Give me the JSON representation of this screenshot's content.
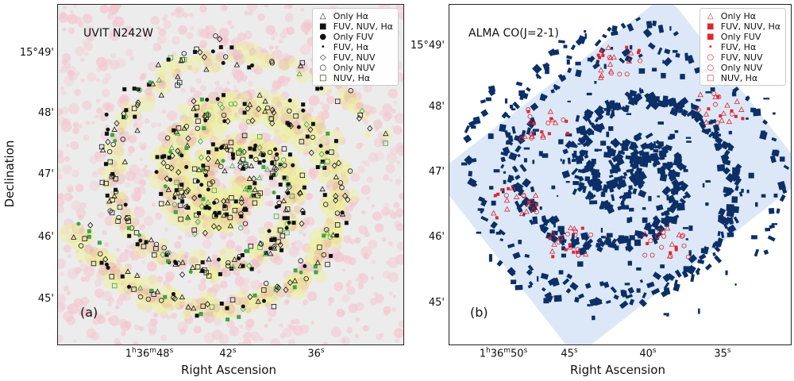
{
  "figure": {
    "panel_a": {
      "title": "UVIT N242W",
      "tag": "(a)",
      "ylabel": "Declination",
      "xlabel": "Right Ascension",
      "yticks": [
        "15°49'",
        "48'",
        "47'",
        "46'",
        "45'"
      ],
      "xticks": [
        "1h36m48s",
        "42s",
        "36s"
      ],
      "legend": [
        {
          "label": "Only Hα",
          "symbol": "△"
        },
        {
          "label": "FUV, NUV, Hα",
          "symbol": "■"
        },
        {
          "label": "Only FUV",
          "symbol": "●"
        },
        {
          "label": "FUV, Hα",
          "symbol": "•"
        },
        {
          "label": "FUV, NUV",
          "symbol": "◇"
        },
        {
          "label": "Only NUV",
          "symbol": "○"
        },
        {
          "label": "NUV, Hα",
          "symbol": "□"
        }
      ]
    },
    "panel_b": {
      "title": "ALMA CO(J=2-1)",
      "tag": "(b)",
      "xlabel": "Right Ascension",
      "yticks": [
        "15°49'",
        "48'",
        "47'",
        "46'",
        "45'"
      ],
      "xticks": [
        "1h36m50s",
        "45s",
        "40s",
        "35s"
      ],
      "legend": [
        {
          "label": "Only Hα",
          "symbol": "△"
        },
        {
          "label": "FUV, NUV, Hα",
          "symbol": "■"
        },
        {
          "label": "Only FUV",
          "symbol": "■"
        },
        {
          "label": "FUV, Hα",
          "symbol": "•"
        },
        {
          "label": "FUV, NUV",
          "symbol": "○"
        },
        {
          "label": "Only NUV",
          "symbol": "○"
        },
        {
          "label": "NUV, Hα",
          "symbol": "□"
        }
      ]
    },
    "colors": {
      "uv_background": "#ececec",
      "uv_pink": "#f4c6cf",
      "uv_yellow": "#eef0a0",
      "alma_footprint": "#dce8f7",
      "alma_co": "#0b2f66",
      "marker_red": "#e0262f",
      "marker_green": "#3fa63f"
    }
  }
}
